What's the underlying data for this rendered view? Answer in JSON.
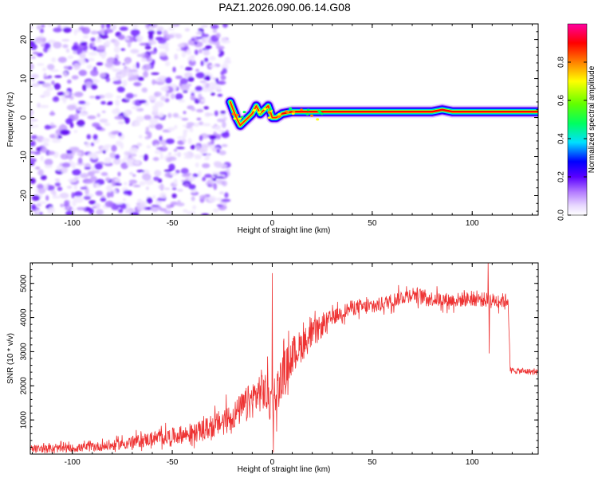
{
  "title": "PAZ1.2026.090.06.14.G08",
  "chart_data": [
    {
      "type": "heatmap",
      "name": "spectrogram",
      "xlabel": "Height of straight line (km)",
      "ylabel": "Frequency (Hz)",
      "xlim": [
        -121,
        133
      ],
      "ylim": [
        -25,
        24
      ],
      "xticks": [
        -100,
        -50,
        0,
        50,
        100
      ],
      "yticks": [
        -20,
        -10,
        0,
        10,
        20
      ],
      "xtick_labels": [
        "-100",
        "-50",
        "0",
        "50",
        "100"
      ],
      "ytick_labels": [
        "-20",
        "-10",
        "0",
        "10",
        "20"
      ],
      "noise_region_x": [
        -121,
        -22
      ],
      "signal_track": {
        "x": [
          -21,
          -18,
          -16,
          -14,
          -12,
          -10,
          -8,
          -6,
          -4,
          -2,
          0,
          2,
          5,
          10,
          20,
          40,
          60,
          80,
          85,
          90,
          100,
          110,
          120,
          133
        ],
        "frequency": [
          4,
          0,
          -2,
          -1,
          0,
          1,
          3,
          1,
          2,
          3,
          0,
          0,
          1,
          1.5,
          1.5,
          1.5,
          1.5,
          1.5,
          2,
          1.5,
          1.5,
          1.5,
          1.5,
          1.5
        ]
      },
      "colorbar": {
        "label": "Normalized spectral amplitude",
        "range": [
          0,
          1
        ],
        "ticks": [
          0.0,
          0.2,
          0.4,
          0.6,
          0.8
        ],
        "tick_labels": [
          "0.0",
          "0.2",
          "0.4",
          "0.6",
          "0.8"
        ]
      }
    },
    {
      "type": "line",
      "name": "snr",
      "xlabel": "Height of straight line (km)",
      "ylabel": "SNR (10 * v/v)",
      "xlim": [
        -121,
        133
      ],
      "ylim": [
        0,
        5600
      ],
      "xticks": [
        -100,
        -50,
        0,
        50,
        100
      ],
      "yticks": [
        1000,
        2000,
        3000,
        4000,
        5000
      ],
      "xtick_labels": [
        "-100",
        "-50",
        "0",
        "50",
        "100"
      ],
      "ytick_labels": [
        "1000",
        "2000",
        "3000",
        "4000",
        "5000"
      ],
      "color": "#ee3333",
      "series_trend": {
        "x": [
          -121,
          -100,
          -80,
          -60,
          -40,
          -30,
          -20,
          -10,
          -5,
          0,
          2,
          5,
          10,
          20,
          30,
          40,
          50,
          60,
          70,
          80,
          90,
          100,
          110,
          118,
          119,
          133
        ],
        "y": [
          150,
          170,
          250,
          450,
          600,
          800,
          1100,
          1600,
          1900,
          1500,
          1800,
          2300,
          2900,
          3500,
          4000,
          4300,
          4300,
          4500,
          4700,
          4550,
          4500,
          4550,
          4500,
          4500,
          2450,
          2400
        ]
      },
      "spikes": [
        {
          "x": 0,
          "y": 5300
        },
        {
          "x": 0.5,
          "y": 50
        },
        {
          "x": 108,
          "y": 5600
        },
        {
          "x": 108.5,
          "y": 2950
        }
      ]
    }
  ]
}
